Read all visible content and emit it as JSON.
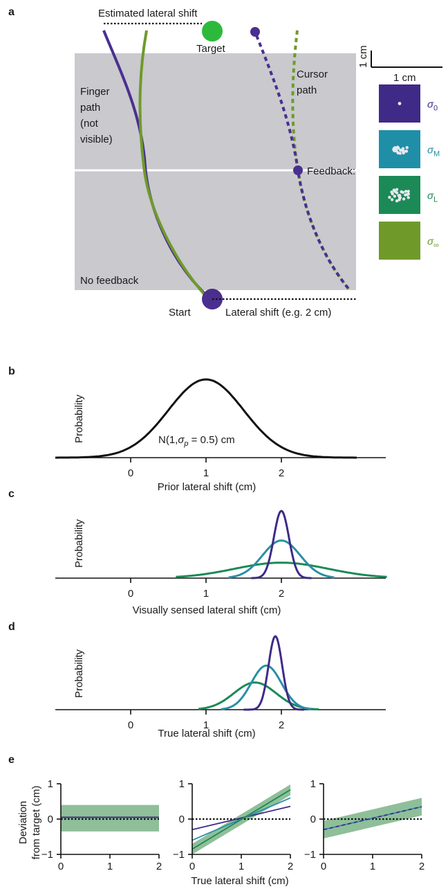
{
  "panel_a": {
    "letter": "a",
    "estimated_shift_label": "Estimated lateral shift",
    "target_label": "Target",
    "finger_path_lines": [
      "Finger",
      "path",
      "(not",
      "visible)"
    ],
    "cursor_path_lines": [
      "Cursor",
      "path"
    ],
    "feedback_label": "Feedback:",
    "no_feedback_label": "No feedback",
    "start_label": "Start",
    "lateral_shift_label": "Lateral shift (e.g. 2 cm)",
    "scale_v_label": "1 cm",
    "scale_h_label": "1 cm",
    "feedback_conditions": [
      {
        "name": "σ0",
        "sigma": "σ",
        "sub": "0",
        "bg": "#3f2a87",
        "text_color": "#3f2a87",
        "dots": "single"
      },
      {
        "name": "σM",
        "sigma": "σ",
        "sub": "M",
        "bg": "#1f8fa8",
        "text_color": "#1f8fa8",
        "dots": "cloud"
      },
      {
        "name": "σL",
        "sigma": "σ",
        "sub": "L",
        "bg": "#1b8a56",
        "text_color": "#1b8a56",
        "dots": "cloud-wide"
      },
      {
        "name": "σ∞",
        "sigma": "σ",
        "sub": "∞",
        "bg": "#6f9a2a",
        "text_color": "#6f9a2a",
        "dots": "none"
      }
    ],
    "colors": {
      "purple": "#4a2f8f",
      "olive": "#6f9a2a",
      "target_green": "#2dba3c",
      "workspace_gray": "#c9c9ce"
    }
  },
  "panel_b": {
    "letter": "b",
    "ylabel": "Probability",
    "xlabel": "Prior lateral shift (cm)",
    "xticks": [
      "0",
      "1",
      "2"
    ],
    "annotation_prefix": "N(1,",
    "annotation_sigma": "σ",
    "annotation_sub": "p",
    "annotation_suffix": " = 0.5) cm"
  },
  "panel_c": {
    "letter": "c",
    "ylabel": "Probability",
    "xlabel": "Visually sensed lateral shift (cm)",
    "xticks": [
      "0",
      "1",
      "2"
    ]
  },
  "panel_d": {
    "letter": "d",
    "ylabel": "Probability",
    "xlabel": "True lateral shift (cm)",
    "xticks": [
      "0",
      "1",
      "2"
    ]
  },
  "panel_e": {
    "letter": "e",
    "ylabel_lines": [
      "Deviation",
      "from target (cm)"
    ],
    "xlabel": "True lateral shift (cm)",
    "xticks": [
      "0",
      "1",
      "2"
    ],
    "yticks": [
      "1",
      "0",
      "−1"
    ]
  },
  "chart_data": [
    {
      "type": "line",
      "panel": "b",
      "xlabel": "Prior lateral shift (cm)",
      "ylabel": "Probability",
      "xlim": [
        -1,
        3.4
      ],
      "series": [
        {
          "distribution": "normal",
          "mean": 1.0,
          "sd": 0.5,
          "peak": 1.0,
          "color": "#111111",
          "range": [
            -1.0,
            3.0
          ]
        }
      ]
    },
    {
      "type": "line",
      "panel": "c",
      "xlabel": "Visually sensed lateral shift (cm)",
      "ylabel": "Probability",
      "xlim": [
        -1,
        3.4
      ],
      "series": [
        {
          "distribution": "normal",
          "mean": 2.0,
          "sd": 0.1,
          "peak": 1.0,
          "color": "#3f2a87",
          "range": [
            1.6,
            2.4
          ]
        },
        {
          "distribution": "normal",
          "mean": 2.0,
          "sd": 0.25,
          "peak": 0.56,
          "color": "#2a8ea6",
          "range": [
            1.3,
            2.7
          ]
        },
        {
          "distribution": "normal",
          "mean": 2.0,
          "sd": 0.62,
          "peak": 0.23,
          "color": "#1b8a56",
          "range": [
            0.6,
            3.4
          ]
        }
      ]
    },
    {
      "type": "line",
      "panel": "d",
      "xlabel": "True lateral shift (cm)",
      "ylabel": "Probability",
      "xlim": [
        -1,
        3.4
      ],
      "series": [
        {
          "distribution": "normal",
          "mean": 1.92,
          "sd": 0.09,
          "peak": 1.0,
          "color": "#3f2a87",
          "range": [
            1.5,
            2.3
          ]
        },
        {
          "distribution": "normal",
          "mean": 1.8,
          "sd": 0.2,
          "peak": 0.6,
          "color": "#2a8ea6",
          "range": [
            1.2,
            2.4
          ]
        },
        {
          "distribution": "normal",
          "mean": 1.65,
          "sd": 0.28,
          "peak": 0.37,
          "color": "#1b8a56",
          "range": [
            0.9,
            2.5
          ]
        }
      ]
    },
    {
      "type": "line",
      "panel": "e1",
      "xlim": [
        0,
        2
      ],
      "ylim": [
        -1,
        1
      ],
      "band": {
        "lower": [
          -0.35,
          -0.35
        ],
        "upper": [
          0.4,
          0.4
        ],
        "x": [
          0,
          2
        ],
        "color": "#8fbf99"
      },
      "series": [
        {
          "x": [
            0,
            2
          ],
          "y": [
            0.05,
            0.05
          ],
          "color": "#2a8ea6"
        },
        {
          "x": [
            0,
            2
          ],
          "y": [
            0.05,
            0.05
          ],
          "color": "#3f2a87"
        }
      ],
      "zero_line": true
    },
    {
      "type": "line",
      "panel": "e2",
      "xlim": [
        0,
        2
      ],
      "ylim": [
        -1,
        1
      ],
      "band": {
        "x": [
          0,
          2
        ],
        "lower": [
          -1.0,
          0.68
        ],
        "upper": [
          -0.7,
          0.98
        ],
        "color": "#8fbf99"
      },
      "series": [
        {
          "x": [
            0,
            2
          ],
          "y": [
            -0.3,
            0.36
          ],
          "color": "#3f2a87"
        },
        {
          "x": [
            0,
            2
          ],
          "y": [
            -0.6,
            0.6
          ],
          "color": "#2a8ea6"
        },
        {
          "x": [
            0,
            2
          ],
          "y": [
            -0.85,
            0.83
          ],
          "color": "#1b8a56"
        }
      ],
      "zero_line": true
    },
    {
      "type": "line",
      "panel": "e3",
      "xlim": [
        0,
        2
      ],
      "ylim": [
        -1,
        1
      ],
      "band": {
        "x": [
          0,
          2
        ],
        "lower": [
          -0.55,
          0.1
        ],
        "upper": [
          -0.05,
          0.6
        ],
        "color": "#8fbf99"
      },
      "series": [
        {
          "x": [
            0,
            2
          ],
          "y": [
            -0.3,
            0.35
          ],
          "color": "#2a8ea6"
        },
        {
          "x": [
            0,
            2
          ],
          "y": [
            -0.3,
            0.35
          ],
          "color": "#3f2a87",
          "dash": true
        }
      ],
      "zero_line": true
    }
  ]
}
